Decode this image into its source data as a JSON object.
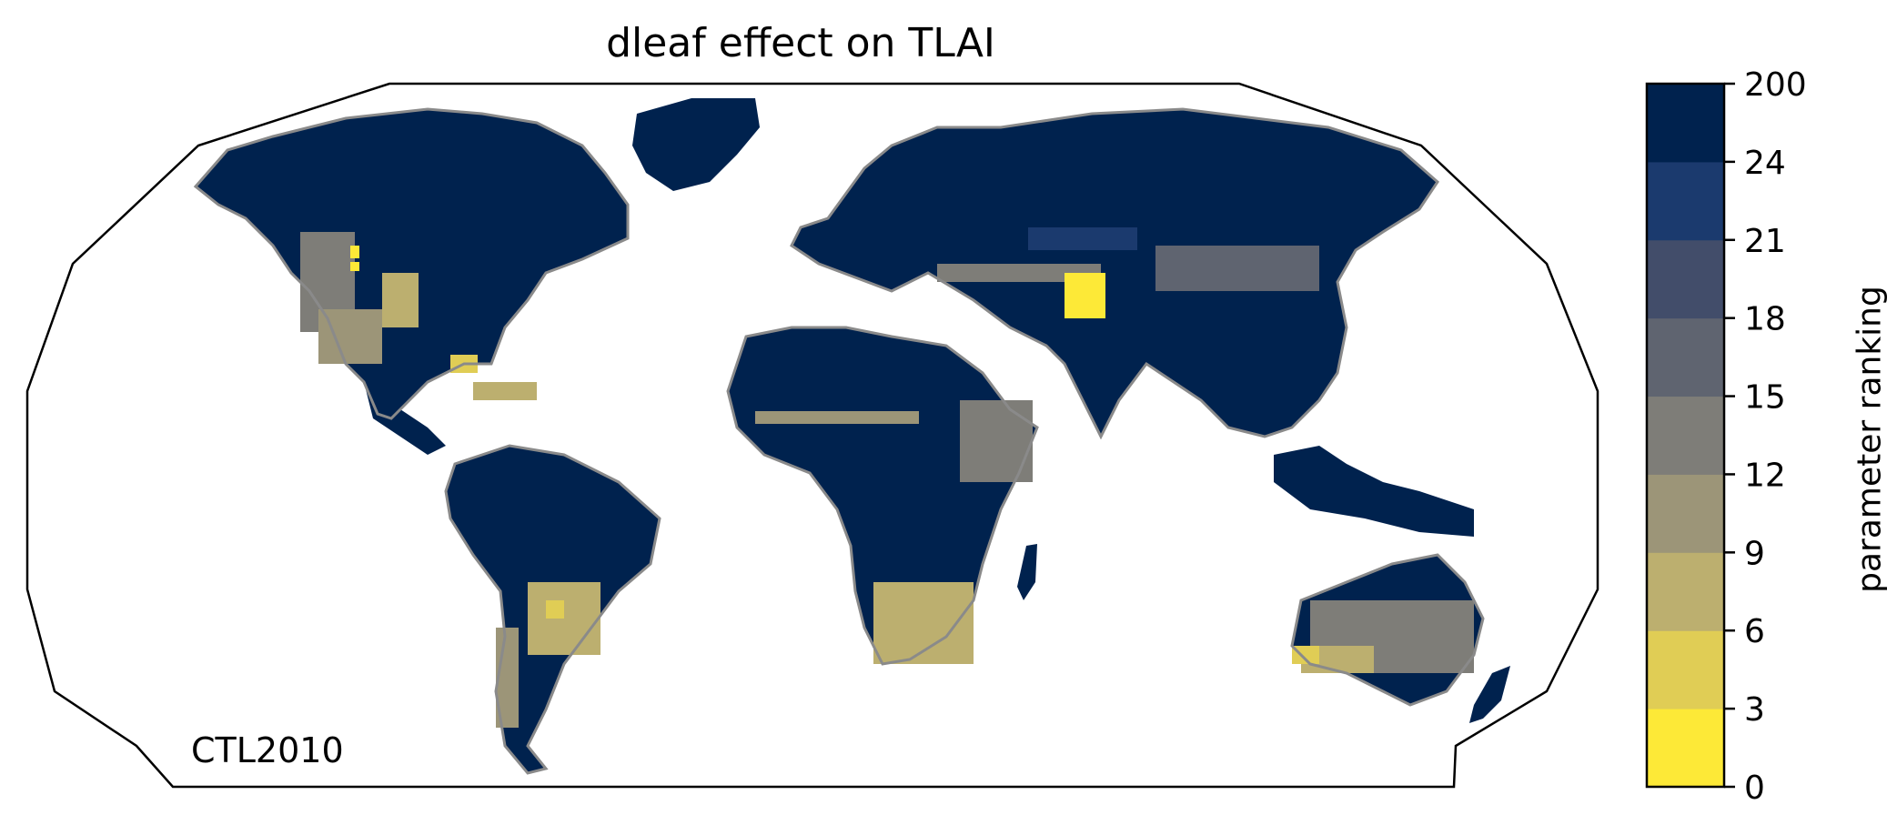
{
  "title": "dleaf effect on TLAI",
  "run_label": "CTL2010",
  "colorbar": {
    "label": "parameter ranking",
    "ticks": [
      "0",
      "3",
      "6",
      "9",
      "12",
      "15",
      "18",
      "21",
      "24",
      "200"
    ],
    "colors": [
      "#fde937",
      "#e0cd55",
      "#bcaf6f",
      "#9c9578",
      "#7e7d78",
      "#5f6470",
      "#424d6a",
      "#1b3a6e",
      "#00224e"
    ]
  },
  "map": {
    "projection": "Robinson",
    "ocean_color": "#ffffff",
    "coastline_color": "#8a8a8a",
    "dominant_class": "#00224e"
  }
}
